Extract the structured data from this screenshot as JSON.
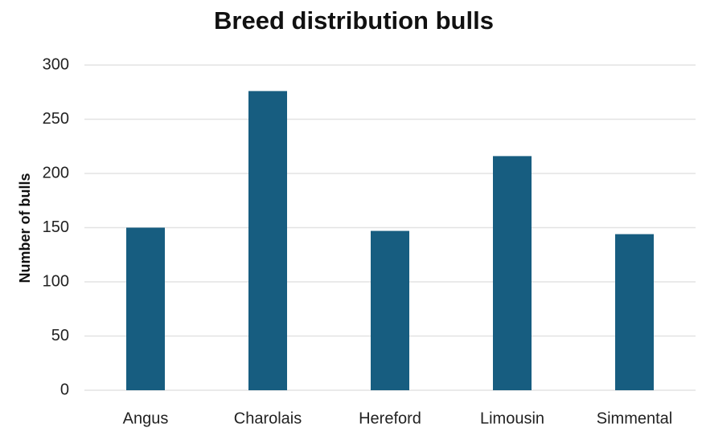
{
  "chart_data": {
    "type": "bar",
    "title": "Breed distribution bulls",
    "y_label": "Number of bulls",
    "categories": [
      "Angus",
      "Charolais",
      "Hereford",
      "Limousin",
      "Simmental"
    ],
    "values": [
      150,
      276,
      147,
      216,
      144
    ],
    "color": "#175d80",
    "ylim": [
      0,
      300
    ],
    "yticks": [
      0,
      50,
      100,
      150,
      200,
      250,
      300
    ],
    "grid": true
  }
}
